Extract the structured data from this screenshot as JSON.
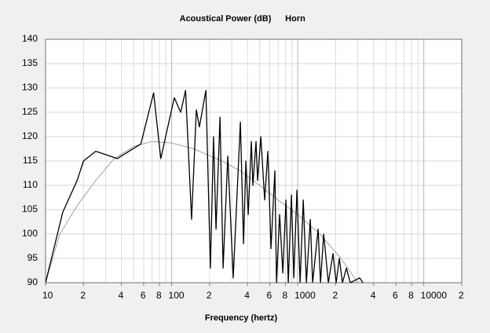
{
  "chart_data": {
    "type": "line",
    "title": "Acoustical Power (dB)",
    "subtitle": "Horn",
    "x_label": "Frequency (hertz)",
    "log_x": true,
    "grid": true,
    "minor_grid": true,
    "xlim": [
      10,
      20000
    ],
    "ylim": [
      90,
      140
    ],
    "xticks": [
      10,
      {
        "value": 20,
        "label": "2"
      },
      {
        "value": 40,
        "label": "4"
      },
      {
        "value": 60,
        "label": "6"
      },
      {
        "value": 80,
        "label": "8"
      },
      100,
      {
        "value": 200,
        "label": "2"
      },
      {
        "value": 400,
        "label": "4"
      },
      {
        "value": 600,
        "label": "6"
      },
      {
        "value": 800,
        "label": "8"
      },
      1000,
      {
        "value": 2000,
        "label": "2"
      },
      {
        "value": 4000,
        "label": "4"
      },
      {
        "value": 6000,
        "label": "6"
      },
      {
        "value": 8000,
        "label": "8"
      },
      10000,
      {
        "value": 20000,
        "label": "2"
      }
    ],
    "yticks": [
      90,
      95,
      100,
      105,
      110,
      115,
      120,
      125,
      130,
      135,
      140
    ],
    "series": [
      {
        "color": "#a0a0a0",
        "x": [
          10,
          13,
          18,
          25,
          35,
          50,
          70,
          100,
          150,
          250,
          350,
          500,
          700,
          1000,
          1500,
          2200,
          3000
        ],
        "values": [
          90,
          100,
          106,
          111,
          115.5,
          118,
          119,
          118.7,
          117.5,
          115,
          113,
          110,
          107,
          104,
          100,
          95,
          90
        ]
      },
      {
        "color": "#000000",
        "x": [
          10,
          13.7,
          17.8,
          20,
          25,
          37,
          57,
          72,
          82,
          105,
          118,
          129,
          144,
          157,
          166,
          187,
          203,
          215,
          225,
          242,
          256,
          279,
          308,
          351,
          372,
          388,
          405,
          429,
          441,
          467,
          481,
          510,
          547,
          580,
          614,
          659,
          679,
          719,
          762,
          807,
          842,
          892,
          931,
          986,
          1045,
          1107,
          1172,
          1259,
          1313,
          1452,
          1517,
          1607,
          1751,
          1906,
          2019,
          2138,
          2265,
          2434,
          2614,
          3104,
          3289
        ],
        "values": [
          90,
          104.5,
          111,
          115,
          117,
          115.5,
          118.5,
          129,
          115.5,
          128,
          125,
          129.5,
          103,
          125.5,
          122,
          129.5,
          93,
          120,
          101,
          124,
          93,
          116,
          91,
          123,
          98,
          115,
          104,
          119,
          110,
          119,
          111,
          120,
          107,
          117,
          97,
          113,
          90,
          104,
          92,
          107,
          90,
          108,
          91,
          109,
          90,
          107,
          90,
          103,
          90,
          101,
          90,
          100,
          90,
          96,
          90,
          95,
          90,
          93,
          90,
          91,
          90
        ]
      }
    ]
  }
}
